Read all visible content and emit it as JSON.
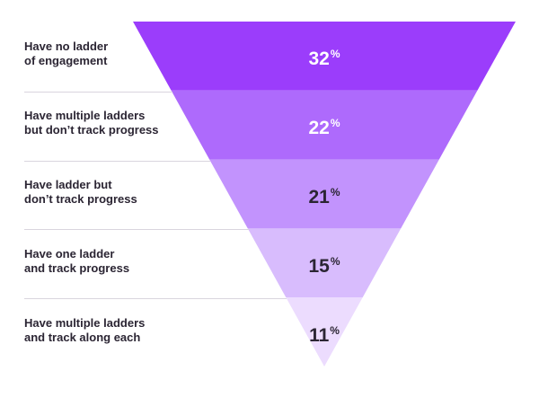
{
  "chart_data": {
    "type": "funnel",
    "categories": [
      "Have no ladder\nof engagement",
      "Have multiple ladders\nbut don’t track progress",
      "Have ladder but\ndon’t track progress",
      "Have one ladder\nand track progress",
      "Have multiple ladders\nand track along each"
    ],
    "values": [
      32,
      22,
      21,
      15,
      11
    ],
    "unit": "%",
    "colors": [
      "#9b3dfb",
      "#ae6afc",
      "#c293fd",
      "#d8bcfd",
      "#ecdcfe"
    ],
    "value_text_colors": [
      "#ffffff",
      "#ffffff",
      "#2b2533",
      "#2b2533",
      "#2b2533"
    ]
  }
}
